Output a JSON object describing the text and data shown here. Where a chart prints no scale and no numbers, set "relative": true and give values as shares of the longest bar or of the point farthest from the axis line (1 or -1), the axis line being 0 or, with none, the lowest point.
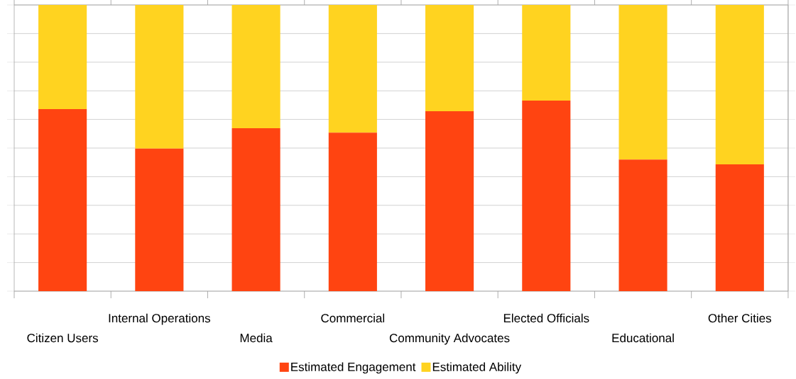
{
  "chart_data": {
    "type": "bar",
    "stacked": true,
    "relative": true,
    "grid": "y",
    "legend": "bottom",
    "categories": [
      "Citizen Users",
      "Internal Operations",
      "Media",
      "Commercial",
      "Community Advocates",
      "Elected Officials",
      "Educational",
      "Other Cities"
    ],
    "series": [
      {
        "name": "Estimated Engagement",
        "color": "#ff4411",
        "values": [
          0.636,
          0.498,
          0.569,
          0.554,
          0.629,
          0.666,
          0.46,
          0.443
        ]
      },
      {
        "name": "Estimated Ability",
        "color": "#ffd320",
        "values": [
          0.364,
          0.502,
          0.431,
          0.446,
          0.371,
          0.334,
          0.54,
          0.557
        ]
      }
    ]
  }
}
